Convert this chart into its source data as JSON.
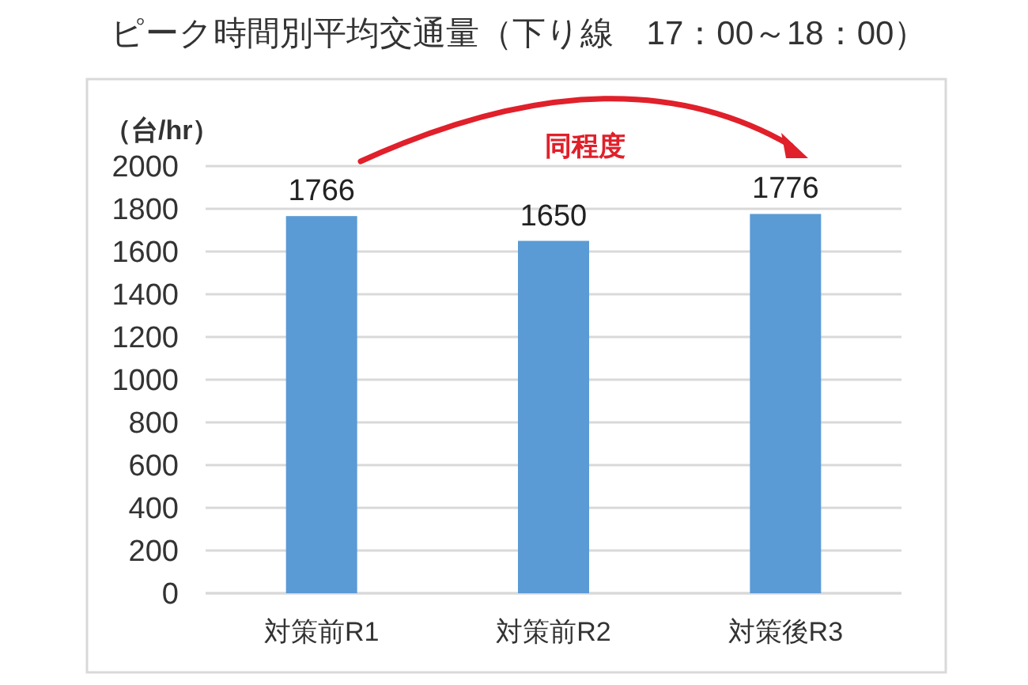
{
  "chart_data": {
    "type": "bar",
    "title": "ピーク時間別平均交通量（下り線　17：00～18：00）",
    "ylabel": "（台/hr）",
    "categories": [
      "対策前R1",
      "対策前R2",
      "対策後R3"
    ],
    "values": [
      1766,
      1650,
      1776
    ],
    "color": "#5b9bd5",
    "ylim": [
      0,
      2000
    ],
    "yticks": [
      0,
      200,
      400,
      600,
      800,
      1000,
      1200,
      1400,
      1600,
      1800,
      2000
    ],
    "grid": "y",
    "data_labels": true,
    "annotations": [
      "同程度"
    ]
  }
}
